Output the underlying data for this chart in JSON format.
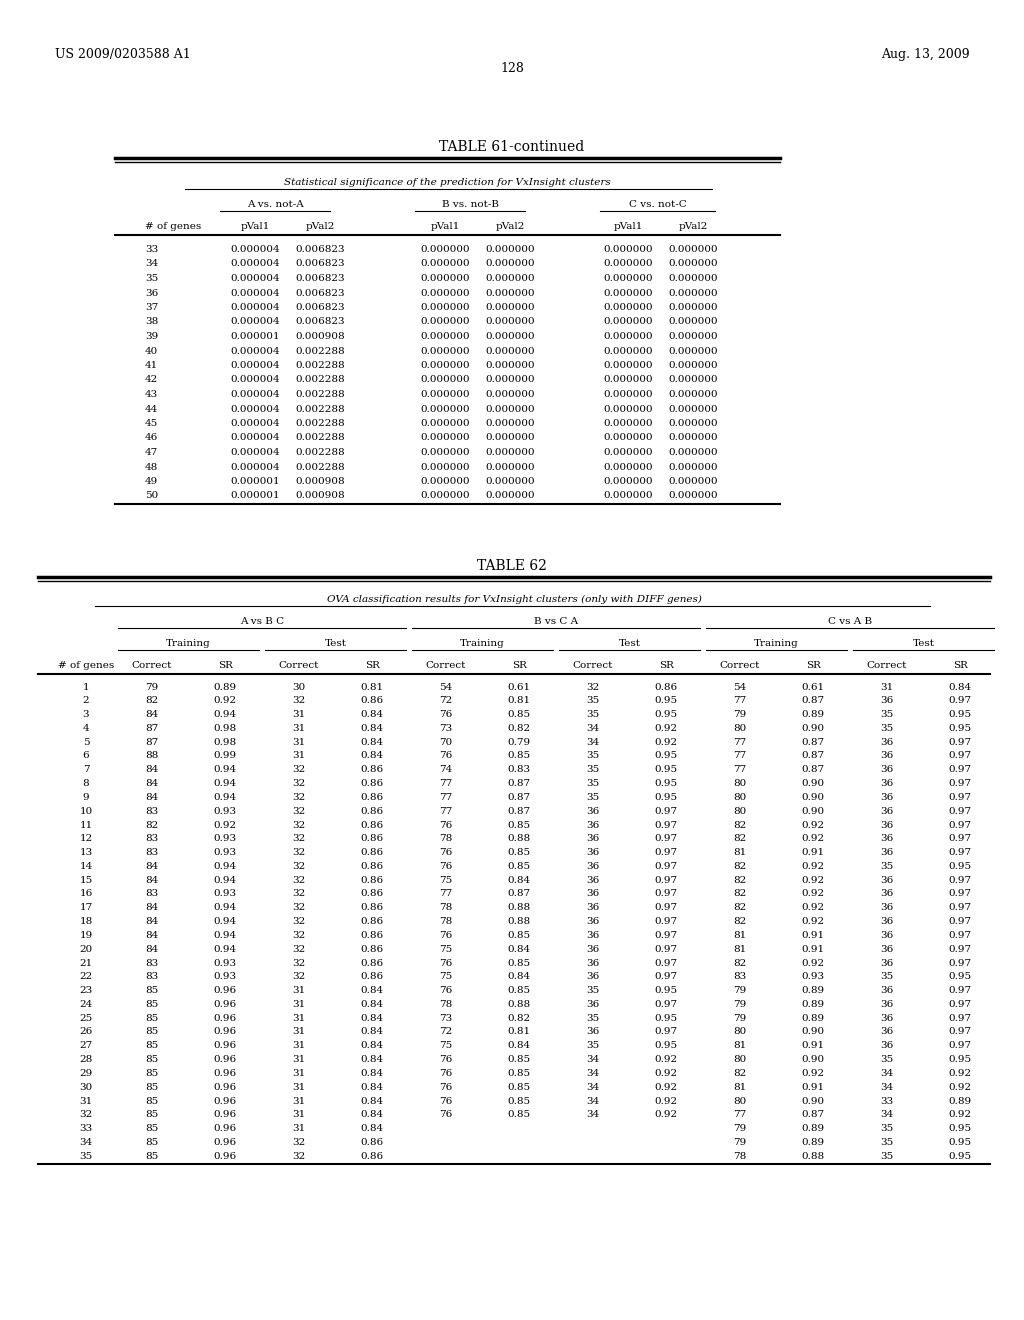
{
  "header_left": "US 2009/0203588 A1",
  "header_right": "Aug. 13, 2009",
  "page_number": "128",
  "table61_title": "TABLE 61-continued",
  "table61_subtitle": "Statistical significance of the prediction for VxInsight clusters",
  "table61_col_groups": [
    "A vs. not-A",
    "B vs. not-B",
    "C vs. not-C"
  ],
  "table61_col_headers": [
    "# of genes",
    "pVal1",
    "pVal2",
    "pVal1",
    "pVal2",
    "pVal1",
    "pVal2"
  ],
  "table61_data": [
    [
      33,
      "0.000004",
      "0.006823",
      "0.000000",
      "0.000000",
      "0.000000",
      "0.000000"
    ],
    [
      34,
      "0.000004",
      "0.006823",
      "0.000000",
      "0.000000",
      "0.000000",
      "0.000000"
    ],
    [
      35,
      "0.000004",
      "0.006823",
      "0.000000",
      "0.000000",
      "0.000000",
      "0.000000"
    ],
    [
      36,
      "0.000004",
      "0.006823",
      "0.000000",
      "0.000000",
      "0.000000",
      "0.000000"
    ],
    [
      37,
      "0.000004",
      "0.006823",
      "0.000000",
      "0.000000",
      "0.000000",
      "0.000000"
    ],
    [
      38,
      "0.000004",
      "0.006823",
      "0.000000",
      "0.000000",
      "0.000000",
      "0.000000"
    ],
    [
      39,
      "0.000001",
      "0.000908",
      "0.000000",
      "0.000000",
      "0.000000",
      "0.000000"
    ],
    [
      40,
      "0.000004",
      "0.002288",
      "0.000000",
      "0.000000",
      "0.000000",
      "0.000000"
    ],
    [
      41,
      "0.000004",
      "0.002288",
      "0.000000",
      "0.000000",
      "0.000000",
      "0.000000"
    ],
    [
      42,
      "0.000004",
      "0.002288",
      "0.000000",
      "0.000000",
      "0.000000",
      "0.000000"
    ],
    [
      43,
      "0.000004",
      "0.002288",
      "0.000000",
      "0.000000",
      "0.000000",
      "0.000000"
    ],
    [
      44,
      "0.000004",
      "0.002288",
      "0.000000",
      "0.000000",
      "0.000000",
      "0.000000"
    ],
    [
      45,
      "0.000004",
      "0.002288",
      "0.000000",
      "0.000000",
      "0.000000",
      "0.000000"
    ],
    [
      46,
      "0.000004",
      "0.002288",
      "0.000000",
      "0.000000",
      "0.000000",
      "0.000000"
    ],
    [
      47,
      "0.000004",
      "0.002288",
      "0.000000",
      "0.000000",
      "0.000000",
      "0.000000"
    ],
    [
      48,
      "0.000004",
      "0.002288",
      "0.000000",
      "0.000000",
      "0.000000",
      "0.000000"
    ],
    [
      49,
      "0.000001",
      "0.000908",
      "0.000000",
      "0.000000",
      "0.000000",
      "0.000000"
    ],
    [
      50,
      "0.000001",
      "0.000908",
      "0.000000",
      "0.000000",
      "0.000000",
      "0.000000"
    ]
  ],
  "table62_title": "TABLE 62",
  "table62_subtitle": "OVA classification results for VxInsight clusters (only with DIFF genes)",
  "table62_data": [
    [
      1,
      79,
      0.89,
      30,
      0.81,
      54,
      0.61,
      32,
      0.86,
      54,
      0.61,
      31,
      0.84
    ],
    [
      2,
      82,
      0.92,
      32,
      0.86,
      72,
      0.81,
      35,
      0.95,
      77,
      0.87,
      36,
      0.97
    ],
    [
      3,
      84,
      0.94,
      31,
      0.84,
      76,
      0.85,
      35,
      0.95,
      79,
      0.89,
      35,
      0.95
    ],
    [
      4,
      87,
      0.98,
      31,
      0.84,
      73,
      0.82,
      34,
      0.92,
      80,
      0.9,
      35,
      0.95
    ],
    [
      5,
      87,
      0.98,
      31,
      0.84,
      70,
      0.79,
      34,
      0.92,
      77,
      0.87,
      36,
      0.97
    ],
    [
      6,
      88,
      0.99,
      31,
      0.84,
      76,
      0.85,
      35,
      0.95,
      77,
      0.87,
      36,
      0.97
    ],
    [
      7,
      84,
      0.94,
      32,
      0.86,
      74,
      0.83,
      35,
      0.95,
      77,
      0.87,
      36,
      0.97
    ],
    [
      8,
      84,
      0.94,
      32,
      0.86,
      77,
      0.87,
      35,
      0.95,
      80,
      0.9,
      36,
      0.97
    ],
    [
      9,
      84,
      0.94,
      32,
      0.86,
      77,
      0.87,
      35,
      0.95,
      80,
      0.9,
      36,
      0.97
    ],
    [
      10,
      83,
      0.93,
      32,
      0.86,
      77,
      0.87,
      36,
      0.97,
      80,
      0.9,
      36,
      0.97
    ],
    [
      11,
      82,
      0.92,
      32,
      0.86,
      76,
      0.85,
      36,
      0.97,
      82,
      0.92,
      36,
      0.97
    ],
    [
      12,
      83,
      0.93,
      32,
      0.86,
      78,
      0.88,
      36,
      0.97,
      82,
      0.92,
      36,
      0.97
    ],
    [
      13,
      83,
      0.93,
      32,
      0.86,
      76,
      0.85,
      36,
      0.97,
      81,
      0.91,
      36,
      0.97
    ],
    [
      14,
      84,
      0.94,
      32,
      0.86,
      76,
      0.85,
      36,
      0.97,
      82,
      0.92,
      35,
      0.95
    ],
    [
      15,
      84,
      0.94,
      32,
      0.86,
      75,
      0.84,
      36,
      0.97,
      82,
      0.92,
      36,
      0.97
    ],
    [
      16,
      83,
      0.93,
      32,
      0.86,
      77,
      0.87,
      36,
      0.97,
      82,
      0.92,
      36,
      0.97
    ],
    [
      17,
      84,
      0.94,
      32,
      0.86,
      78,
      0.88,
      36,
      0.97,
      82,
      0.92,
      36,
      0.97
    ],
    [
      18,
      84,
      0.94,
      32,
      0.86,
      78,
      0.88,
      36,
      0.97,
      82,
      0.92,
      36,
      0.97
    ],
    [
      19,
      84,
      0.94,
      32,
      0.86,
      76,
      0.85,
      36,
      0.97,
      81,
      0.91,
      36,
      0.97
    ],
    [
      20,
      84,
      0.94,
      32,
      0.86,
      75,
      0.84,
      36,
      0.97,
      81,
      0.91,
      36,
      0.97
    ],
    [
      21,
      83,
      0.93,
      32,
      0.86,
      76,
      0.85,
      36,
      0.97,
      82,
      0.92,
      36,
      0.97
    ],
    [
      22,
      83,
      0.93,
      32,
      0.86,
      75,
      0.84,
      36,
      0.97,
      83,
      0.93,
      35,
      0.95
    ],
    [
      23,
      85,
      0.96,
      31,
      0.84,
      76,
      0.85,
      35,
      0.95,
      79,
      0.89,
      36,
      0.97
    ],
    [
      24,
      85,
      0.96,
      31,
      0.84,
      78,
      0.88,
      36,
      0.97,
      79,
      0.89,
      36,
      0.97
    ],
    [
      25,
      85,
      0.96,
      31,
      0.84,
      73,
      0.82,
      35,
      0.95,
      79,
      0.89,
      36,
      0.97
    ],
    [
      26,
      85,
      0.96,
      31,
      0.84,
      72,
      0.81,
      36,
      0.97,
      80,
      0.9,
      36,
      0.97
    ],
    [
      27,
      85,
      0.96,
      31,
      0.84,
      75,
      0.84,
      35,
      0.95,
      81,
      0.91,
      36,
      0.97
    ],
    [
      28,
      85,
      0.96,
      31,
      0.84,
      76,
      0.85,
      34,
      0.92,
      80,
      0.9,
      35,
      0.95
    ],
    [
      29,
      85,
      0.96,
      31,
      0.84,
      76,
      0.85,
      34,
      0.92,
      82,
      0.92,
      34,
      0.92
    ],
    [
      30,
      85,
      0.96,
      31,
      0.84,
      76,
      0.85,
      34,
      0.92,
      81,
      0.91,
      34,
      0.92
    ],
    [
      31,
      85,
      0.96,
      31,
      0.84,
      76,
      0.85,
      34,
      0.92,
      80,
      0.9,
      33,
      0.89
    ],
    [
      32,
      85,
      0.96,
      31,
      0.84,
      76,
      0.85,
      34,
      0.92,
      77,
      0.87,
      34,
      0.92
    ],
    [
      33,
      85,
      0.96,
      31,
      0.84,
      null,
      null,
      null,
      null,
      79,
      0.89,
      35,
      0.95
    ],
    [
      34,
      85,
      0.96,
      32,
      0.86,
      null,
      null,
      null,
      null,
      79,
      0.89,
      35,
      0.95
    ],
    [
      35,
      85,
      0.96,
      32,
      0.86,
      null,
      null,
      null,
      null,
      78,
      0.88,
      35,
      0.95
    ]
  ]
}
